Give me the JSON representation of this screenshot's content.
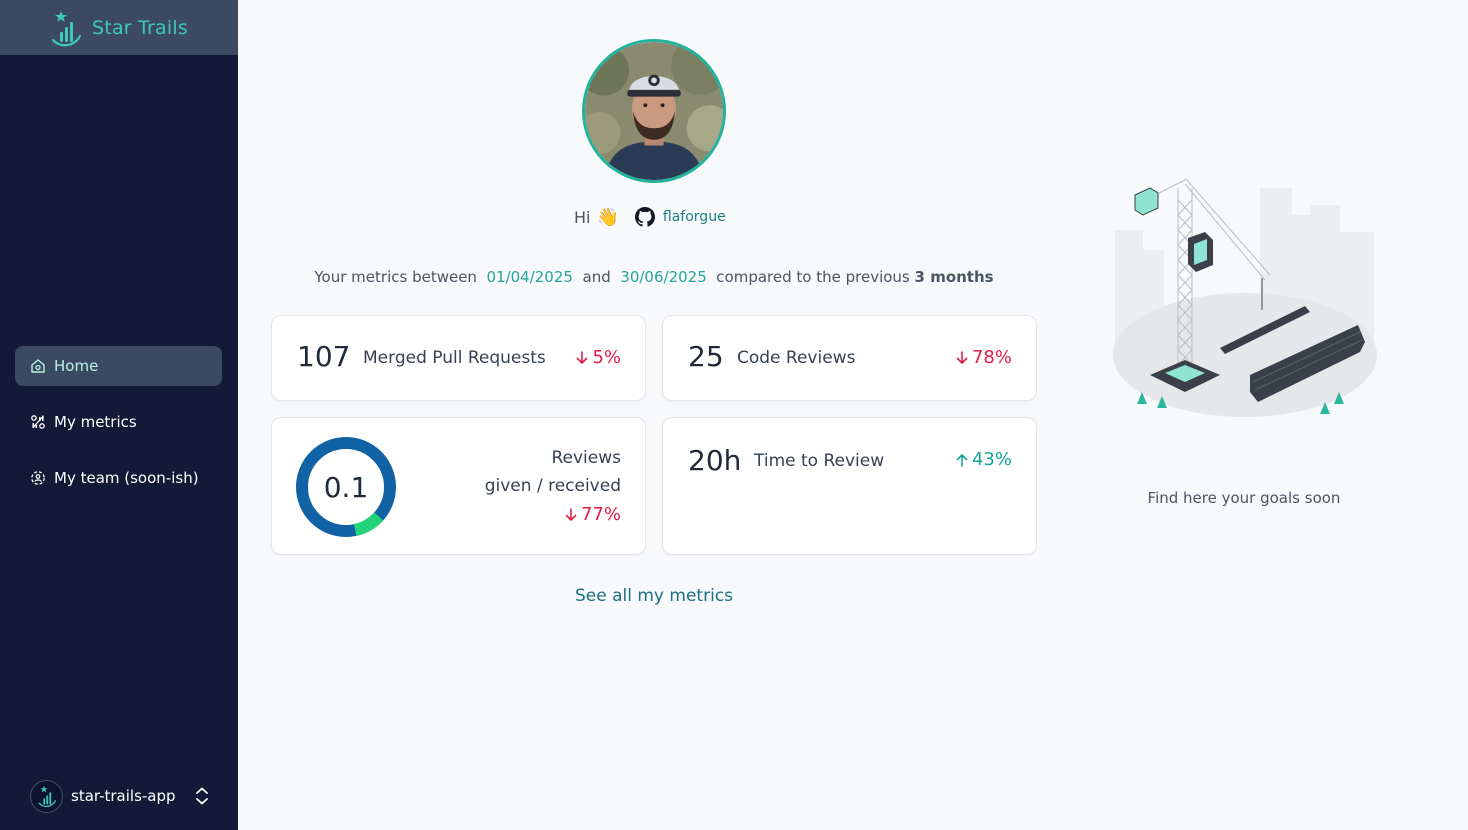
{
  "brand": {
    "name": "Star Trails",
    "icon": "bar-chart-star-logo"
  },
  "sidebar": {
    "items": [
      {
        "label": "Home",
        "icon": "home-icon",
        "active": true
      },
      {
        "label": "My metrics",
        "icon": "metrics-icon",
        "active": false
      },
      {
        "label": "My team (soon-ish)",
        "icon": "team-icon",
        "active": false
      }
    ],
    "app_switcher": {
      "label": "star-trails-app",
      "icon": "chevron-up-down-icon"
    }
  },
  "profile": {
    "greeting": "Hi",
    "wave": "👋",
    "github_icon": "github-icon",
    "username": "flaforgue"
  },
  "period": {
    "prefix": "Your metrics between",
    "start": "01/04/2025",
    "conj": "and",
    "end": "30/06/2025",
    "suffix": "compared to the previous",
    "window": "3 months"
  },
  "cards": {
    "merged_prs": {
      "value": "107",
      "label": "Merged Pull Requests",
      "delta": "5%",
      "direction": "down"
    },
    "code_reviews": {
      "value": "25",
      "label": "Code Reviews",
      "delta": "78%",
      "direction": "down"
    },
    "review_ratio": {
      "value": "0.1",
      "ratio": 0.1,
      "label_line1": "Reviews",
      "label_line2": "given / received",
      "delta": "77%",
      "direction": "down"
    },
    "time_to_review": {
      "value": "20h",
      "label": "Time to Review",
      "delta": "43%",
      "direction": "up"
    }
  },
  "see_all": "See all my metrics",
  "goals": {
    "text": "Find here your goals soon"
  },
  "colors": {
    "sidebar_bg": "#131a37",
    "accent": "#3ec9b4",
    "negative": "#e11d48",
    "positive": "#14a398",
    "donut_primary": "#1062a4",
    "donut_secondary": "#22d37a"
  }
}
